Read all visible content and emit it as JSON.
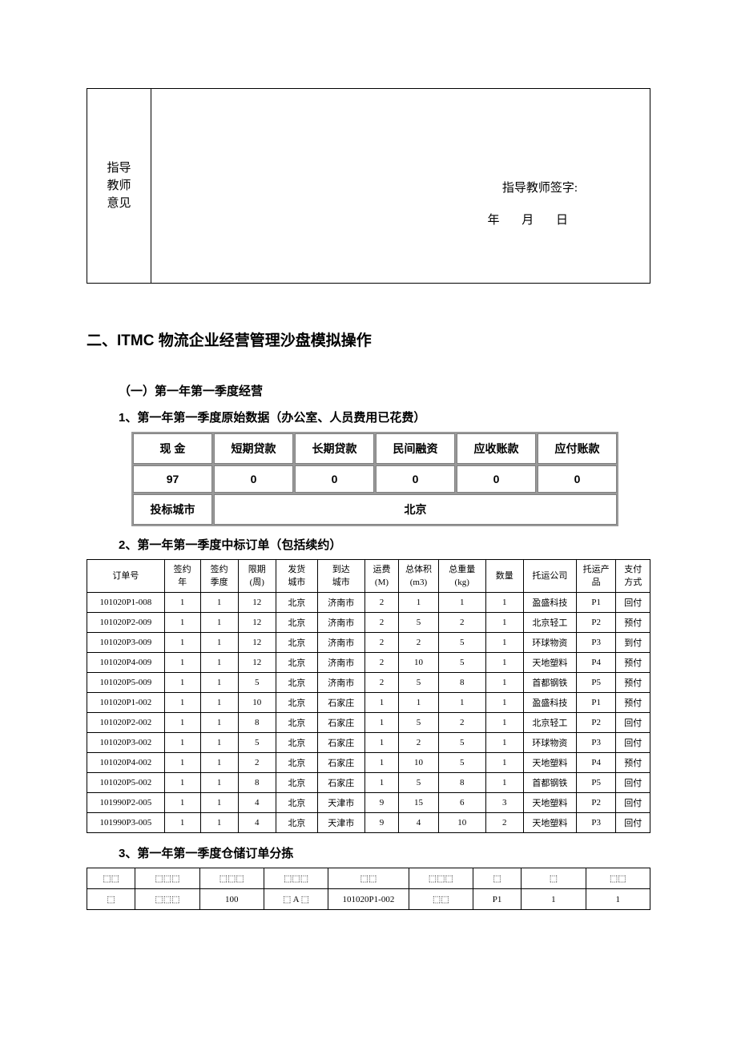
{
  "instructor": {
    "label": "指导教师意见",
    "signature_label": "指导教师签字:",
    "date_label": "年 月 日"
  },
  "section_title": "二、ITMC 物流企业经营管理沙盘模拟操作",
  "subsection_title": "（一）第一年第一季度经营",
  "item1": {
    "title": "1、第一年第一季度原始数据（办公室、人员费用已花费）",
    "headers": [
      "现 金",
      "短期贷款",
      "长期贷款",
      "民间融资",
      "应收账款",
      "应付账款"
    ],
    "values": [
      "97",
      "0",
      "0",
      "0",
      "0",
      "0"
    ],
    "city_label": "投标城市",
    "city_value": "北京"
  },
  "item2": {
    "title": "2、第一年第一季度中标订单（包括续约）",
    "headers": [
      "订单号",
      "签约年",
      "签约季度",
      "限期(周)",
      "发货城市",
      "到达城市",
      "运费(M)",
      "总体积(m3)",
      "总重量(kg)",
      "数量",
      "托运公司",
      "托运产品",
      "支付方式"
    ],
    "rows": [
      [
        "101020P1-008",
        "1",
        "1",
        "12",
        "北京",
        "济南市",
        "2",
        "1",
        "1",
        "1",
        "盈盛科技",
        "P1",
        "回付"
      ],
      [
        "101020P2-009",
        "1",
        "1",
        "12",
        "北京",
        "济南市",
        "2",
        "5",
        "2",
        "1",
        "北京轻工",
        "P2",
        "预付"
      ],
      [
        "101020P3-009",
        "1",
        "1",
        "12",
        "北京",
        "济南市",
        "2",
        "2",
        "5",
        "1",
        "环球物资",
        "P3",
        "到付"
      ],
      [
        "101020P4-009",
        "1",
        "1",
        "12",
        "北京",
        "济南市",
        "2",
        "10",
        "5",
        "1",
        "天地塑料",
        "P4",
        "预付"
      ],
      [
        "101020P5-009",
        "1",
        "1",
        "5",
        "北京",
        "济南市",
        "2",
        "5",
        "8",
        "1",
        "首都钢铁",
        "P5",
        "预付"
      ],
      [
        "101020P1-002",
        "1",
        "1",
        "10",
        "北京",
        "石家庄",
        "1",
        "1",
        "1",
        "1",
        "盈盛科技",
        "P1",
        "预付"
      ],
      [
        "101020P2-002",
        "1",
        "1",
        "8",
        "北京",
        "石家庄",
        "1",
        "5",
        "2",
        "1",
        "北京轻工",
        "P2",
        "回付"
      ],
      [
        "101020P3-002",
        "1",
        "1",
        "5",
        "北京",
        "石家庄",
        "1",
        "2",
        "5",
        "1",
        "环球物资",
        "P3",
        "回付"
      ],
      [
        "101020P4-002",
        "1",
        "1",
        "2",
        "北京",
        "石家庄",
        "1",
        "10",
        "5",
        "1",
        "天地塑料",
        "P4",
        "预付"
      ],
      [
        "101020P5-002",
        "1",
        "1",
        "8",
        "北京",
        "石家庄",
        "1",
        "5",
        "8",
        "1",
        "首都钢铁",
        "P5",
        "回付"
      ],
      [
        "101990P2-005",
        "1",
        "1",
        "4",
        "北京",
        "天津市",
        "9",
        "15",
        "6",
        "3",
        "天地塑料",
        "P2",
        "回付"
      ],
      [
        "101990P3-005",
        "1",
        "1",
        "4",
        "北京",
        "天津市",
        "9",
        "4",
        "10",
        "2",
        "天地塑料",
        "P3",
        "回付"
      ]
    ]
  },
  "item3": {
    "title": "3、第一年第一季度仓储订单分拣",
    "row1": [
      "⬚⬚",
      "⬚⬚⬚",
      "⬚⬚⬚",
      "⬚⬚⬚",
      "⬚⬚",
      "⬚⬚⬚",
      "⬚",
      "⬚",
      "⬚⬚"
    ],
    "row2": [
      "⬚",
      "⬚⬚⬚",
      "100",
      "⬚ A ⬚",
      "101020P1-002",
      "⬚⬚",
      "P1",
      "1",
      "1"
    ]
  },
  "colors": {
    "text": "#000000",
    "background": "#ffffff",
    "border": "#000000",
    "finance_border": "#808080"
  }
}
